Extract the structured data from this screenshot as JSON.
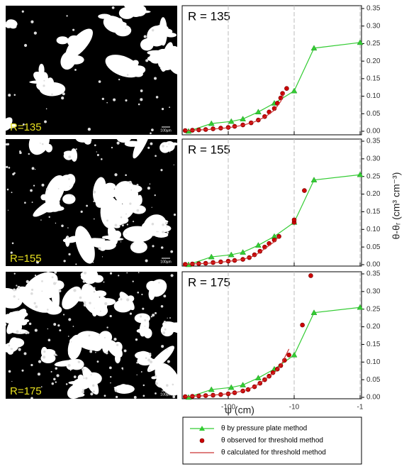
{
  "images": [
    {
      "label": "R=135",
      "scale_label": "100µm"
    },
    {
      "label": "R=155",
      "scale_label": "100µm"
    },
    {
      "label": "R=175",
      "scale_label": "100µm"
    }
  ],
  "chart_data": [
    {
      "type": "scatter",
      "title": "R = 135",
      "log_x": true,
      "grid": true,
      "xlim": [
        -500,
        -1
      ],
      "xticks": [
        -100,
        -10,
        -1
      ],
      "ylim": [
        0,
        0.35
      ],
      "yticks": [
        {
          "value": 0,
          "label": "0.00"
        },
        {
          "value": 0.05,
          "label": "0.05"
        },
        {
          "value": 0.1,
          "label": "0.10"
        },
        {
          "value": 0.15,
          "label": "0.15"
        },
        {
          "value": 0.2,
          "label": "0.20"
        },
        {
          "value": 0.25,
          "label": "0.25"
        },
        {
          "value": 0.3,
          "label": "0.30"
        },
        {
          "value": 0.35,
          "label": "0.35"
        }
      ],
      "series": [
        {
          "name": "θ by pressure plate method",
          "color": "#33cc33",
          "style": "line+triangle",
          "x": [
            -400,
            -180,
            -90,
            -60,
            -35,
            -20,
            -10,
            -5,
            -1
          ],
          "values": [
            0.0,
            0.022,
            0.028,
            0.035,
            0.055,
            0.08,
            0.115,
            0.237,
            0.253
          ]
        },
        {
          "name": "θ observed for threshold method",
          "color": "#cc0000",
          "style": "circle",
          "x": [
            -450,
            -350,
            -280,
            -220,
            -170,
            -130,
            -100,
            -80,
            -60,
            -45,
            -35,
            -28,
            -24,
            -20,
            -18,
            -16,
            -15,
            -13
          ],
          "values": [
            0.002,
            0.003,
            0.004,
            0.005,
            0.007,
            0.009,
            0.011,
            0.014,
            0.018,
            0.024,
            0.032,
            0.042,
            0.055,
            0.065,
            0.08,
            0.095,
            0.108,
            0.122
          ]
        },
        {
          "name": "θ calculated for threshold method",
          "color": "#cc3333",
          "style": "line",
          "x": [
            -450,
            -200,
            -100,
            -60,
            -40,
            -28,
            -20,
            -16,
            -14
          ],
          "values": [
            0.002,
            0.005,
            0.01,
            0.017,
            0.027,
            0.04,
            0.06,
            0.085,
            0.11
          ]
        }
      ]
    },
    {
      "type": "scatter",
      "title": "R = 155",
      "log_x": true,
      "grid": true,
      "y_label": "θ-θᵣ (cm³ cm⁻³)",
      "xlim": [
        -500,
        -1
      ],
      "xticks": [
        -100,
        -10,
        -1
      ],
      "ylim": [
        0,
        0.35
      ],
      "yticks": [
        {
          "value": 0,
          "label": "0.00"
        },
        {
          "value": 0.05,
          "label": "0.05"
        },
        {
          "value": 0.1,
          "label": "0.10"
        },
        {
          "value": 0.15,
          "label": "0.15"
        },
        {
          "value": 0.2,
          "label": "0.20"
        },
        {
          "value": 0.25,
          "label": "0.25"
        },
        {
          "value": 0.3,
          "label": "0.30"
        },
        {
          "value": 0.35,
          "label": "0.35"
        }
      ],
      "series": [
        {
          "color": "#33cc33",
          "style": "line+triangle",
          "x": [
            -400,
            -180,
            -90,
            -60,
            -35,
            -20,
            -10,
            -5,
            -1
          ],
          "values": [
            0.0,
            0.022,
            0.028,
            0.035,
            0.055,
            0.08,
            0.12,
            0.24,
            0.255
          ]
        },
        {
          "color": "#cc0000",
          "style": "circle",
          "x": [
            -450,
            -350,
            -280,
            -220,
            -170,
            -130,
            -100,
            -80,
            -60,
            -48,
            -40,
            -33,
            -28,
            -24,
            -20,
            -17,
            -10,
            -10,
            -7
          ],
          "values": [
            0.001,
            0.002,
            0.003,
            0.004,
            0.006,
            0.008,
            0.01,
            0.012,
            0.015,
            0.02,
            0.028,
            0.038,
            0.05,
            0.06,
            0.07,
            0.08,
            0.12,
            0.127,
            0.21
          ]
        },
        {
          "color": "#cc3333",
          "style": "line",
          "x": [
            -450,
            -200,
            -100,
            -60,
            -40,
            -28,
            -20,
            -17
          ],
          "values": [
            0.001,
            0.004,
            0.009,
            0.015,
            0.025,
            0.045,
            0.065,
            0.08
          ]
        }
      ]
    },
    {
      "type": "scatter",
      "title": "R = 175",
      "log_x": true,
      "grid": true,
      "x_label": "ψ (cm)",
      "xlim": [
        -500,
        -1
      ],
      "xticks": [
        -100,
        -10,
        -1
      ],
      "ylim": [
        0,
        0.35
      ],
      "yticks": [
        {
          "value": 0,
          "label": "0.00"
        },
        {
          "value": 0.05,
          "label": "0.05"
        },
        {
          "value": 0.1,
          "label": "0.10"
        },
        {
          "value": 0.15,
          "label": "0.15"
        },
        {
          "value": 0.2,
          "label": "0.20"
        },
        {
          "value": 0.25,
          "label": "0.25"
        },
        {
          "value": 0.3,
          "label": "0.30"
        },
        {
          "value": 0.35,
          "label": "0.35"
        }
      ],
      "series": [
        {
          "color": "#33cc33",
          "style": "line+triangle",
          "x": [
            -400,
            -180,
            -90,
            -60,
            -35,
            -20,
            -10,
            -5,
            -1
          ],
          "values": [
            0.0,
            0.022,
            0.028,
            0.035,
            0.055,
            0.08,
            0.12,
            0.24,
            0.255
          ]
        },
        {
          "color": "#cc0000",
          "style": "circle",
          "x": [
            -450,
            -350,
            -280,
            -220,
            -170,
            -130,
            -100,
            -80,
            -60,
            -50,
            -40,
            -33,
            -28,
            -24,
            -21,
            -18,
            -16,
            -14,
            -12,
            -7.5,
            -5.6
          ],
          "values": [
            0.002,
            0.003,
            0.004,
            0.005,
            0.006,
            0.008,
            0.01,
            0.013,
            0.018,
            0.022,
            0.03,
            0.04,
            0.05,
            0.06,
            0.07,
            0.08,
            0.09,
            0.105,
            0.12,
            0.205,
            0.345
          ]
        },
        {
          "color": "#cc3333",
          "style": "line",
          "x": [
            -450,
            -200,
            -100,
            -60,
            -40,
            -28,
            -20,
            -16,
            -12
          ],
          "values": [
            0.002,
            0.005,
            0.01,
            0.018,
            0.03,
            0.05,
            0.07,
            0.09,
            0.137
          ]
        }
      ]
    }
  ]
}
